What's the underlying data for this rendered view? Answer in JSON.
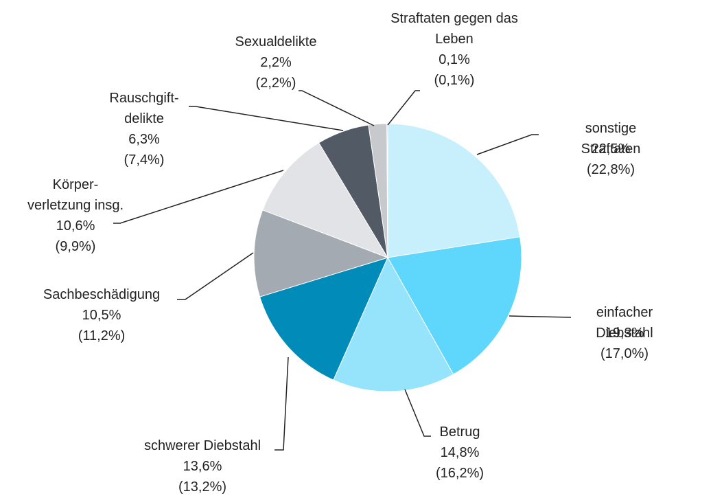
{
  "chart_data": {
    "type": "pie",
    "categories": [
      "sonstige Straftaten",
      "einfacher Diebstahl",
      "Betrug",
      "schwerer Diebstahl",
      "Sachbeschädigung",
      "Körper-\nverletzung insg.",
      "Rauschgift-\ndelikte",
      "Sexualdelikte",
      "Straftaten gegen das\nLeben"
    ],
    "values": [
      22.5,
      19.3,
      14.8,
      13.6,
      10.5,
      10.6,
      6.3,
      2.2,
      0.1
    ],
    "value_labels": [
      "22,5%",
      "19,3%",
      "14,8%",
      "13,6%",
      "10,5%",
      "10,6%",
      "6,3%",
      "2,2%",
      "0,1%"
    ],
    "values_2": [
      22.8,
      17.0,
      16.2,
      13.2,
      11.2,
      9.9,
      7.4,
      2.2,
      0.1
    ],
    "value_labels_2": [
      "(22,8%)",
      "(17,0%)",
      "(16,2%)",
      "(13,2%)",
      "(11,2%)",
      "(9,9%)",
      "(7,4%)",
      "(2,2%)",
      "(0,1%)"
    ],
    "colors": [
      "#c8effc",
      "#5fd6fc",
      "#96e3fc",
      "#008bb8",
      "#a4aab2",
      "#e2e3e7",
      "#525a66",
      "#c7c9cc",
      "#8a9099"
    ]
  }
}
